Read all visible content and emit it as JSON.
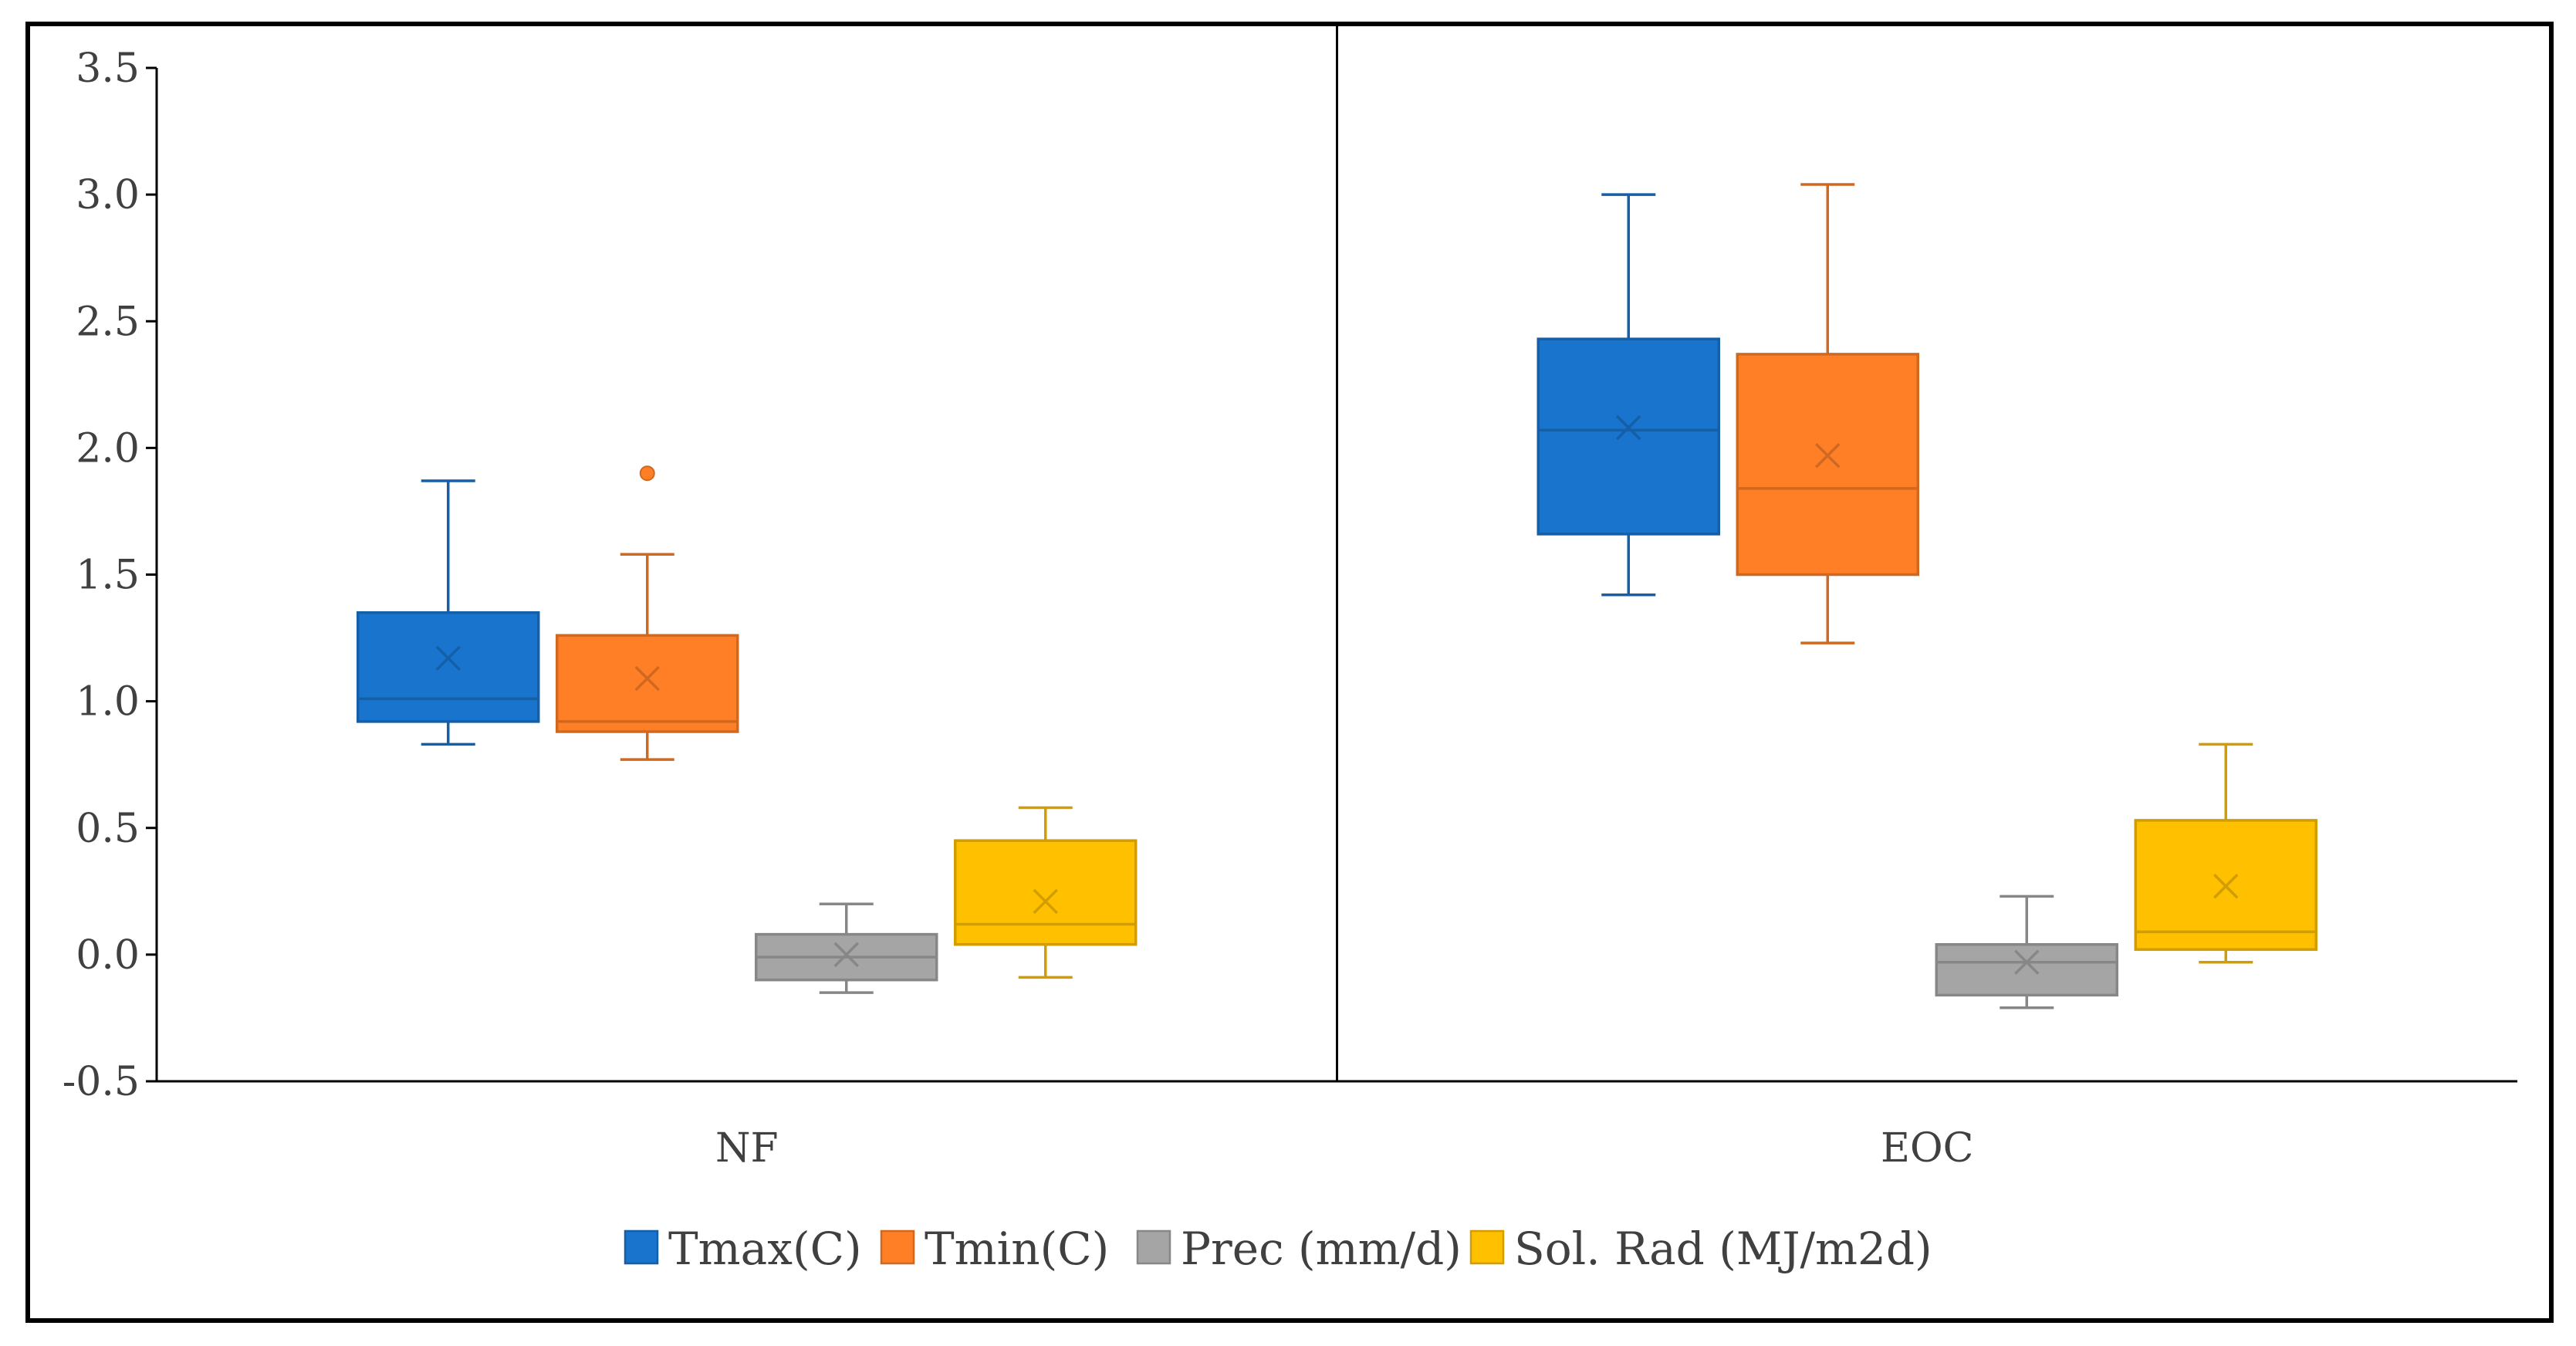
{
  "chart_data": {
    "type": "box",
    "ylim": [
      -0.5,
      3.5
    ],
    "yticks": [
      "3.5",
      "3.0",
      "2.5",
      "2.0",
      "1.5",
      "1.0",
      "0.5",
      "0.0",
      "-0.5"
    ],
    "ytick_values": [
      3.5,
      3.0,
      2.5,
      2.0,
      1.5,
      1.0,
      0.5,
      0.0,
      -0.5
    ],
    "categories": [
      "NF",
      "EOC"
    ],
    "legend_position": "bottom",
    "grid": false,
    "series": [
      {
        "name": "Tmax(C)",
        "color": "#1874CD",
        "boxes": [
          {
            "min": 0.83,
            "q1": 0.92,
            "median": 1.01,
            "q3": 1.35,
            "max": 1.87,
            "mean": 1.17,
            "outliers": []
          },
          {
            "min": 1.42,
            "q1": 1.66,
            "median": 2.07,
            "q3": 2.43,
            "max": 3.0,
            "mean": 2.08,
            "outliers": []
          }
        ]
      },
      {
        "name": "Tmin(C)",
        "color": "#FF7F27",
        "boxes": [
          {
            "min": 0.77,
            "q1": 0.88,
            "median": 0.92,
            "q3": 1.26,
            "max": 1.58,
            "mean": 1.09,
            "outliers": [
              1.9
            ]
          },
          {
            "min": 1.23,
            "q1": 1.5,
            "median": 1.84,
            "q3": 2.37,
            "max": 3.04,
            "mean": 1.97,
            "outliers": []
          }
        ]
      },
      {
        "name": "Prec (mm/d)",
        "color": "#A5A5A5",
        "boxes": [
          {
            "min": -0.15,
            "q1": -0.1,
            "median": -0.01,
            "q3": 0.08,
            "max": 0.2,
            "mean": 0.0,
            "outliers": []
          },
          {
            "min": -0.21,
            "q1": -0.16,
            "median": -0.03,
            "q3": 0.04,
            "max": 0.23,
            "mean": -0.03,
            "outliers": []
          }
        ]
      },
      {
        "name": "Sol. Rad (MJ/m2d)",
        "color": "#FFC000",
        "boxes": [
          {
            "min": -0.09,
            "q1": 0.04,
            "median": 0.12,
            "q3": 0.45,
            "max": 0.58,
            "mean": 0.21,
            "outliers": []
          },
          {
            "min": -0.03,
            "q1": 0.02,
            "median": 0.09,
            "q3": 0.53,
            "max": 0.83,
            "mean": 0.27,
            "outliers": []
          }
        ]
      }
    ]
  }
}
